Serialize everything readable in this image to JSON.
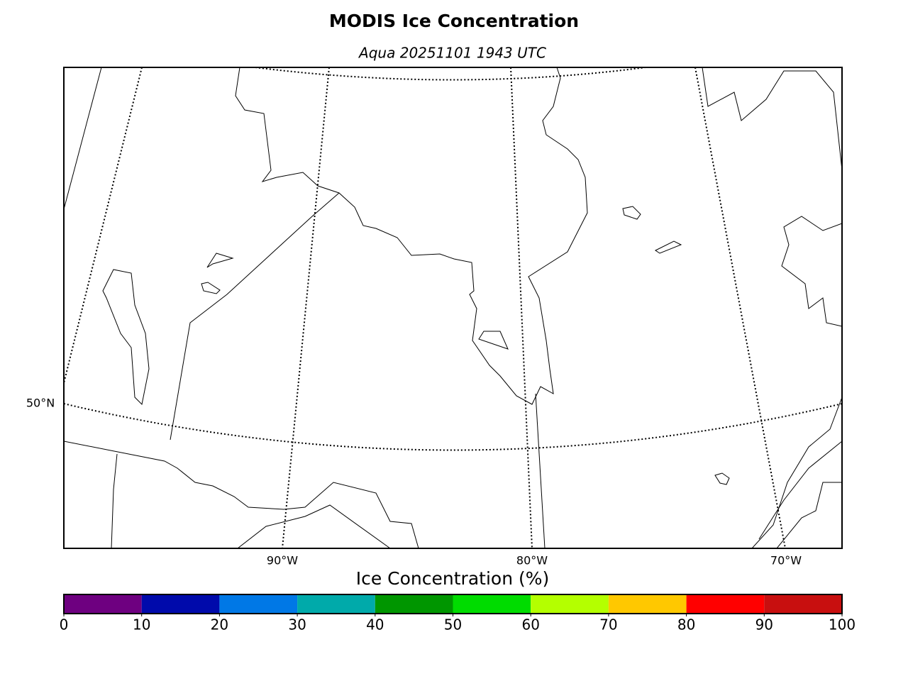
{
  "title": "MODIS Ice Concentration",
  "subtitle": "Aqua 20251101 1943 UTC",
  "map": {
    "lat_labels": [
      "50°N"
    ],
    "lon_labels": [
      "90°W",
      "80°W",
      "70°W"
    ]
  },
  "colorbar": {
    "label": "Ice Concentration (%)",
    "lim": [
      0,
      100
    ],
    "ticks": [
      0,
      10,
      20,
      30,
      40,
      50,
      60,
      70,
      80,
      90,
      100
    ],
    "colors": [
      "#6e0080",
      "#000aab",
      "#0078e6",
      "#00aaaa",
      "#009600",
      "#00dc00",
      "#b4ff00",
      "#ffc800",
      "#ff0000",
      "#c80f0f"
    ]
  }
}
